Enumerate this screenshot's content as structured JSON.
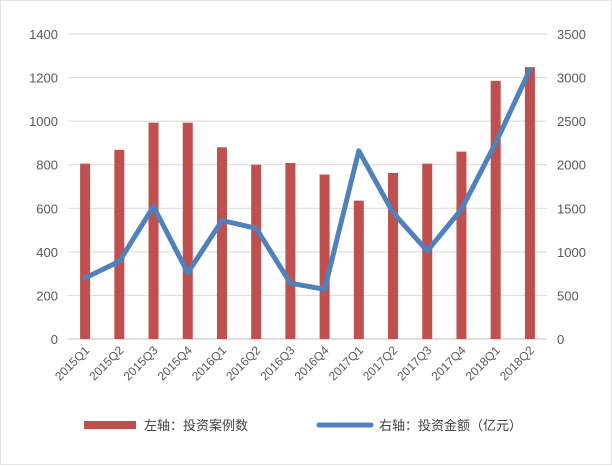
{
  "chart_data": {
    "type": "bar+line",
    "categories": [
      "2015Q1",
      "2015Q2",
      "2015Q3",
      "2015Q4",
      "2016Q1",
      "2016Q2",
      "2016Q3",
      "2016Q4",
      "2017Q1",
      "2017Q2",
      "2017Q3",
      "2017Q4",
      "2018Q1",
      "2018Q2"
    ],
    "series": [
      {
        "name": "左轴：投资案例数",
        "type": "bar",
        "axis": "left",
        "color": "#c0504d",
        "values": [
          805,
          868,
          993,
          993,
          880,
          800,
          808,
          755,
          635,
          762,
          805,
          860,
          1185,
          1248
        ]
      },
      {
        "name": "右轴：投资金额（亿元）",
        "type": "line",
        "axis": "right",
        "color": "#4f81bd",
        "values": [
          700,
          890,
          1520,
          760,
          1360,
          1270,
          640,
          570,
          2160,
          1450,
          1010,
          1490,
          2250,
          3090
        ]
      }
    ],
    "yleft": {
      "min": 0,
      "max": 1400,
      "step": 200
    },
    "yright": {
      "min": 0,
      "max": 3500,
      "step": 500
    },
    "grid": true,
    "legend_position": "bottom"
  }
}
